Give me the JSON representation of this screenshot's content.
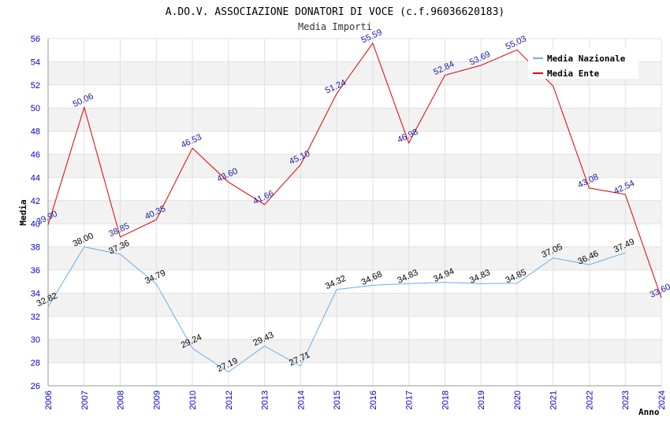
{
  "chart_data": {
    "type": "line",
    "title": "A.DO.V. ASSOCIAZIONE DONATORI DI VOCE (c.f.96036620183)",
    "subtitle": "Media Importi",
    "xlabel": "Anno",
    "ylabel": "Media",
    "ylim": [
      26,
      56
    ],
    "y_ticks": [
      "26",
      "28",
      "30",
      "32",
      "34",
      "36",
      "38",
      "40",
      "42",
      "44",
      "46",
      "48",
      "50",
      "52",
      "54",
      "56"
    ],
    "categories": [
      "2006",
      "2007",
      "2008",
      "2009",
      "2010",
      "2012",
      "2013",
      "2014",
      "2015",
      "2016",
      "2017",
      "2018",
      "2019",
      "2020",
      "2021",
      "2022",
      "2023",
      "2024"
    ],
    "grid": true,
    "legend_position": "top-right",
    "series": [
      {
        "name": "Media Nazionale",
        "color": "#6aaee8",
        "values": [
          32.82,
          38.0,
          37.36,
          34.79,
          29.24,
          27.19,
          29.43,
          27.71,
          34.32,
          34.68,
          34.83,
          34.94,
          34.83,
          34.85,
          37.05,
          36.46,
          37.49,
          null
        ],
        "labels": [
          "32.82",
          "38.00",
          "37.36",
          "34.79",
          "29.24",
          "27.19",
          "29.43",
          "27.71",
          "34.32",
          "34.68",
          "34.83",
          "34.94",
          "34.83",
          "34.85",
          "37.05",
          "36.46",
          "37.49",
          ""
        ]
      },
      {
        "name": "Media Ente",
        "color": "#e00000",
        "values": [
          39.9,
          50.06,
          38.85,
          40.35,
          46.53,
          43.6,
          41.66,
          45.1,
          51.24,
          55.59,
          46.98,
          52.84,
          53.69,
          55.03,
          51.9,
          43.08,
          42.54,
          33.6
        ],
        "labels": [
          "39.90",
          "50.06",
          "38.85",
          "40.35",
          "46.53",
          "43.60",
          "41.66",
          "45.10",
          "51.24",
          "55.59",
          "46.98",
          "52.84",
          "53.69",
          "55.03",
          "",
          "43.08",
          "42.54",
          "33.60"
        ]
      }
    ]
  }
}
